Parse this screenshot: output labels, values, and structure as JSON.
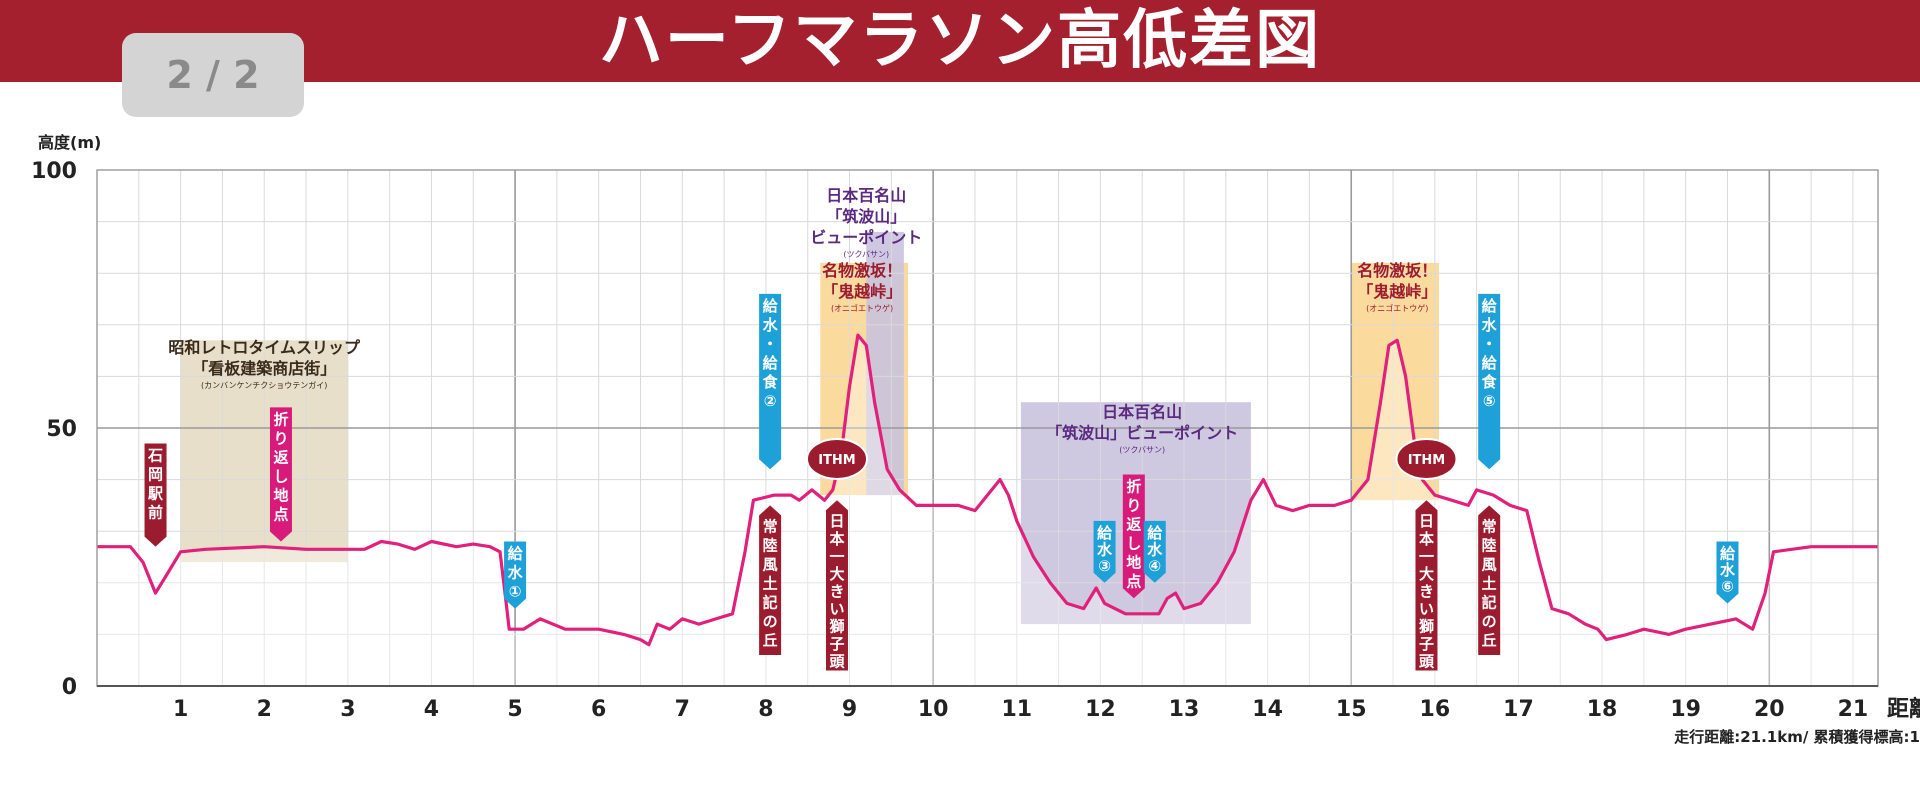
{
  "header": {
    "title": "ハーフマラソン高低差図",
    "page_indicator": "2 / 2"
  },
  "colors": {
    "banner": "#a5202f",
    "line": "#e0207a",
    "maroon": "#9b1c2e",
    "blue": "#1ea0d8",
    "magenta": "#d81b7a",
    "tan": "#e6dcc4",
    "orange": "#fbd694",
    "lavender": "#c9c2dd",
    "purple_text": "#5b2a80"
  },
  "chart_data": {
    "type": "area",
    "ylabel": "高度(m)",
    "xlabel": "距離",
    "xlim": [
      0,
      21.3
    ],
    "ylim": [
      0,
      100
    ],
    "x_ticks": [
      1,
      2,
      3,
      4,
      5,
      6,
      7,
      8,
      9,
      10,
      11,
      12,
      13,
      14,
      15,
      16,
      17,
      18,
      19,
      20,
      21
    ],
    "y_ticks": [
      0,
      50,
      100
    ],
    "grid": true,
    "footnote": "走行距離:21.1km/ 累積獲得標高:1",
    "series": [
      {
        "points": [
          [
            0,
            27
          ],
          [
            0.4,
            27
          ],
          [
            0.55,
            24
          ],
          [
            0.7,
            18
          ],
          [
            0.85,
            22
          ],
          [
            1.0,
            26
          ],
          [
            1.3,
            26.5
          ],
          [
            2,
            27
          ],
          [
            2.5,
            26.5
          ],
          [
            3.0,
            26.5
          ],
          [
            3.2,
            26.5
          ],
          [
            3.4,
            28
          ],
          [
            3.6,
            27.5
          ],
          [
            3.8,
            26.5
          ],
          [
            4.0,
            28
          ],
          [
            4.3,
            27
          ],
          [
            4.5,
            27.5
          ],
          [
            4.7,
            27
          ],
          [
            4.82,
            26
          ],
          [
            4.88,
            18
          ],
          [
            4.93,
            11
          ],
          [
            5.1,
            11
          ],
          [
            5.3,
            13
          ],
          [
            5.6,
            11
          ],
          [
            6.0,
            11
          ],
          [
            6.3,
            10
          ],
          [
            6.5,
            9
          ],
          [
            6.6,
            8
          ],
          [
            6.7,
            12
          ],
          [
            6.85,
            11
          ],
          [
            7.0,
            13
          ],
          [
            7.2,
            12
          ],
          [
            7.4,
            13
          ],
          [
            7.6,
            14
          ],
          [
            7.75,
            26
          ],
          [
            7.85,
            36
          ],
          [
            8.1,
            37
          ],
          [
            8.3,
            37
          ],
          [
            8.4,
            36
          ],
          [
            8.55,
            38
          ],
          [
            8.7,
            36
          ],
          [
            8.8,
            38
          ],
          [
            8.9,
            45
          ],
          [
            9.0,
            58
          ],
          [
            9.1,
            68
          ],
          [
            9.2,
            66
          ],
          [
            9.3,
            55
          ],
          [
            9.45,
            42
          ],
          [
            9.6,
            38
          ],
          [
            9.8,
            35
          ],
          [
            10.0,
            35
          ],
          [
            10.3,
            35
          ],
          [
            10.5,
            34
          ],
          [
            10.6,
            36
          ],
          [
            10.8,
            40
          ],
          [
            10.9,
            37
          ],
          [
            11.0,
            32
          ],
          [
            11.2,
            25
          ],
          [
            11.4,
            20
          ],
          [
            11.6,
            16
          ],
          [
            11.8,
            15
          ],
          [
            11.95,
            19
          ],
          [
            12.05,
            16
          ],
          [
            12.3,
            14
          ],
          [
            12.5,
            14
          ],
          [
            12.7,
            14
          ],
          [
            12.8,
            17
          ],
          [
            12.9,
            18
          ],
          [
            13.0,
            15
          ],
          [
            13.2,
            16
          ],
          [
            13.4,
            20
          ],
          [
            13.6,
            26
          ],
          [
            13.8,
            36
          ],
          [
            13.95,
            40
          ],
          [
            14.1,
            35
          ],
          [
            14.3,
            34
          ],
          [
            14.5,
            35
          ],
          [
            14.8,
            35
          ],
          [
            15.0,
            36
          ],
          [
            15.2,
            40
          ],
          [
            15.35,
            55
          ],
          [
            15.45,
            66
          ],
          [
            15.55,
            67
          ],
          [
            15.65,
            60
          ],
          [
            15.75,
            48
          ],
          [
            15.85,
            40
          ],
          [
            16.0,
            37
          ],
          [
            16.2,
            36
          ],
          [
            16.4,
            35
          ],
          [
            16.5,
            38
          ],
          [
            16.7,
            37
          ],
          [
            16.9,
            35
          ],
          [
            17.1,
            34
          ],
          [
            17.25,
            24
          ],
          [
            17.4,
            15
          ],
          [
            17.6,
            14
          ],
          [
            17.8,
            12
          ],
          [
            17.95,
            11
          ],
          [
            18.05,
            9
          ],
          [
            18.3,
            10
          ],
          [
            18.5,
            11
          ],
          [
            18.8,
            10
          ],
          [
            19.0,
            11
          ],
          [
            19.3,
            12
          ],
          [
            19.6,
            13
          ],
          [
            19.8,
            11
          ],
          [
            19.95,
            18
          ],
          [
            20.05,
            26
          ],
          [
            20.5,
            27
          ],
          [
            21.0,
            27
          ],
          [
            21.3,
            27
          ]
        ]
      }
    ],
    "zones": [
      {
        "x0": 1.0,
        "x1": 3.0,
        "y0": 24,
        "y1": 67,
        "color": "#e6dcc4"
      },
      {
        "x0": 8.65,
        "x1": 9.7,
        "y0": 37,
        "y1": 82,
        "color": "#fbd694"
      },
      {
        "x0": 9.2,
        "x1": 9.65,
        "y0": 37,
        "y1": 88,
        "color": "#c9c2dd"
      },
      {
        "x0": 11.05,
        "x1": 13.8,
        "y0": 12,
        "y1": 55,
        "color": "#c9c2dd"
      },
      {
        "x0": 15.0,
        "x1": 16.05,
        "y0": 36,
        "y1": 82,
        "color": "#fbd694"
      }
    ],
    "annotations": [
      {
        "lines": [
          "昭和レトロタイムスリップ",
          "「看板建築商店街」"
        ],
        "ruby": "(カンバンケンチクショウテンガイ)",
        "x": 2.0,
        "y": 64.5,
        "color": "#3a2a1a"
      },
      {
        "lines": [
          "日本百名山",
          "「筑波山」",
          "ビューポイント"
        ],
        "ruby": "(ツクバサン)",
        "x": 9.2,
        "y": 94,
        "color": "#5b2a80"
      },
      {
        "lines": [
          "名物激坂！",
          "「鬼越峠」"
        ],
        "ruby": "(オニゴエトウゲ)",
        "x": 9.15,
        "y": 79.5,
        "color": "#9b1c2e"
      },
      {
        "lines": [
          "日本百名山",
          "「筑波山」ビューポイント"
        ],
        "ruby": "(ツクバサン)",
        "x": 12.5,
        "y": 52,
        "color": "#5b2a80"
      },
      {
        "lines": [
          "名物激坂！",
          "「鬼越峠」"
        ],
        "ruby": "(オニゴエトウゲ)",
        "x": 15.55,
        "y": 79.5,
        "color": "#9b1c2e"
      }
    ],
    "markers": [
      {
        "text": "石岡駅前",
        "x": 0.7,
        "kind": "down",
        "color": "#9b1c2e",
        "top": 47,
        "bottom": 27
      },
      {
        "text": "折り返し地点",
        "x": 2.2,
        "kind": "down",
        "color": "#d81b7a",
        "top": 54,
        "bottom": 28
      },
      {
        "text": "給水①",
        "x": 5.0,
        "kind": "down",
        "color": "#1ea0d8",
        "top": 28,
        "bottom": 15
      },
      {
        "text": "給水・給食②",
        "x": 8.05,
        "kind": "down",
        "color": "#1ea0d8",
        "top": 76,
        "bottom": 42
      },
      {
        "text": "常陸風土記の丘",
        "x": 8.05,
        "kind": "up",
        "color": "#9b1c2e",
        "top": 35,
        "bottom": 6
      },
      {
        "text": "日本一大きい獅子頭",
        "x": 8.85,
        "kind": "up",
        "color": "#9b1c2e",
        "top": 36,
        "bottom": 3
      },
      {
        "text": "給水③",
        "x": 12.05,
        "kind": "down",
        "color": "#1ea0d8",
        "top": 32,
        "bottom": 20
      },
      {
        "text": "折り返し地点",
        "x": 12.4,
        "kind": "down",
        "color": "#d81b7a",
        "top": 41,
        "bottom": 17
      },
      {
        "text": "給水④",
        "x": 12.65,
        "kind": "down",
        "color": "#1ea0d8",
        "top": 32,
        "bottom": 20
      },
      {
        "text": "日本一大きい獅子頭",
        "x": 15.9,
        "kind": "up",
        "color": "#9b1c2e",
        "top": 36,
        "bottom": 3
      },
      {
        "text": "給水・給食⑤",
        "x": 16.65,
        "kind": "down",
        "color": "#1ea0d8",
        "top": 76,
        "bottom": 42
      },
      {
        "text": "常陸風土記の丘",
        "x": 16.65,
        "kind": "up",
        "color": "#9b1c2e",
        "top": 35,
        "bottom": 6
      },
      {
        "text": "給水⑥",
        "x": 19.5,
        "kind": "down",
        "color": "#1ea0d8",
        "top": 28,
        "bottom": 16
      }
    ],
    "logos": [
      {
        "text": "ITHM",
        "x": 8.85,
        "y": 44
      },
      {
        "text": "ITHM",
        "x": 15.9,
        "y": 44
      }
    ]
  }
}
